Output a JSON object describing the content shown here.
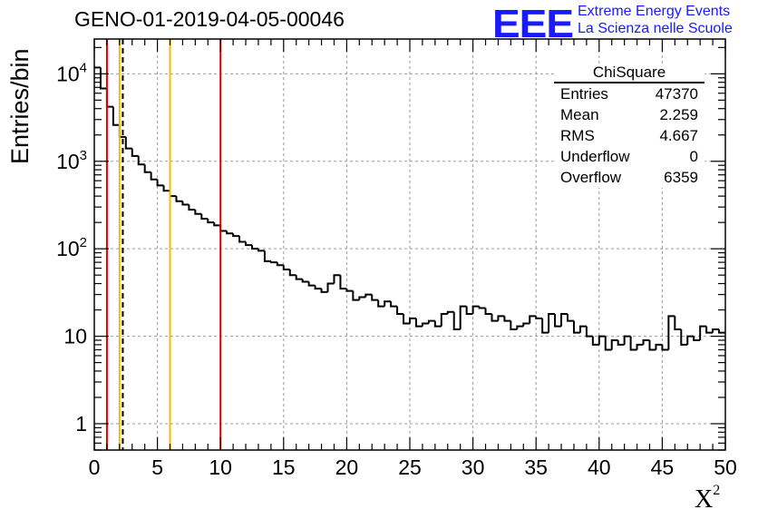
{
  "title": "GENO-01-2019-04-05-00046",
  "logo": {
    "mark": "EEE",
    "line1": "Extreme Energy Events",
    "line2": "La Scienza nelle Scuole",
    "color": "#1a1aff"
  },
  "axes": {
    "ylabel": "Entries/bin",
    "xlabel": "X",
    "xlabel_sup": "2"
  },
  "stats": {
    "title": "ChiSquare",
    "rows": [
      {
        "label": "Entries",
        "value": "47370"
      },
      {
        "label": "Mean",
        "value": "2.259"
      },
      {
        "label": "RMS",
        "value": "4.667"
      },
      {
        "label": "Underflow",
        "value": "0"
      },
      {
        "label": "Overflow",
        "value": "6359"
      }
    ]
  },
  "chart_data": {
    "type": "histogram",
    "title": "GENO-01-2019-04-05-00046",
    "xlabel": "X^2",
    "ylabel": "Entries/bin",
    "xlim": [
      0,
      50
    ],
    "ylim": [
      0.5,
      25000
    ],
    "yscale": "log",
    "grid": true,
    "bin_width": 0.5,
    "x_ticks": [
      0,
      5,
      10,
      15,
      20,
      25,
      30,
      35,
      40,
      45,
      50
    ],
    "y_ticks": [
      {
        "value": 1,
        "label": "1"
      },
      {
        "value": 10,
        "label": "10"
      },
      {
        "value": 100,
        "label": "10",
        "sup": "2"
      },
      {
        "value": 1000,
        "label": "10",
        "sup": "3"
      },
      {
        "value": 10000,
        "label": "10",
        "sup": "4"
      }
    ],
    "bin_counts": [
      11800,
      6800,
      4200,
      2600,
      1900,
      1400,
      1150,
      920,
      750,
      620,
      530,
      460,
      400,
      350,
      320,
      280,
      250,
      220,
      200,
      185,
      160,
      150,
      140,
      120,
      110,
      100,
      95,
      72,
      70,
      65,
      58,
      50,
      45,
      42,
      38,
      35,
      32,
      40,
      50,
      35,
      33,
      26,
      28,
      30,
      26,
      22,
      25,
      22,
      18,
      14,
      16,
      13,
      14,
      15,
      13,
      18,
      19,
      12,
      22,
      18,
      22,
      21,
      18,
      15,
      17,
      15,
      12,
      13,
      14,
      17,
      16,
      11,
      18,
      13,
      18,
      15,
      11,
      13,
      10,
      8,
      10,
      7,
      9,
      8,
      10,
      7,
      8,
      9,
      7,
      8,
      7,
      17,
      12,
      8,
      10,
      9,
      13,
      11,
      12,
      11,
      10,
      11,
      14,
      10,
      11,
      14,
      11,
      8,
      12,
      10,
      11,
      6,
      7,
      10,
      9,
      7,
      12,
      10,
      15,
      9,
      14,
      8,
      11,
      9,
      11,
      10,
      10,
      9,
      11,
      9,
      9,
      9,
      1,
      8,
      11,
      10,
      7,
      20,
      5,
      8,
      5
    ],
    "vertical_lines": [
      {
        "x": 1.0,
        "color": "#e00000",
        "style": "solid"
      },
      {
        "x": 2.0,
        "color": "#f0c000",
        "style": "solid"
      },
      {
        "x": 2.259,
        "color": "#000000",
        "style": "dashed"
      },
      {
        "x": 6.0,
        "color": "#f0c000",
        "style": "solid"
      },
      {
        "x": 10.0,
        "color": "#e00000",
        "style": "solid"
      }
    ]
  }
}
